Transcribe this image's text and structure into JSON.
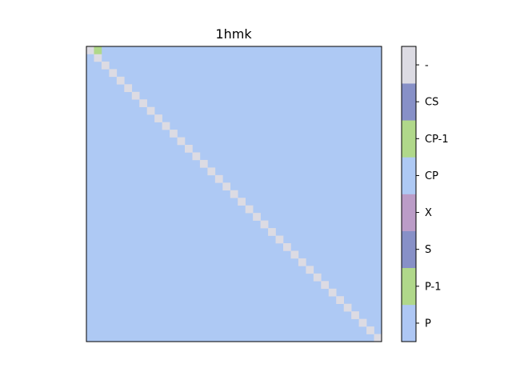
{
  "chart_data": {
    "type": "heatmap",
    "title": "1hmk",
    "xlabel": "",
    "ylabel": "",
    "n": 39,
    "base_category": "CP",
    "diagonal_category": "-",
    "special_cells": [
      {
        "row": 0,
        "col": 1,
        "category": "CP-1"
      }
    ],
    "colorbar": {
      "categories_bottom_to_top": [
        {
          "label": "P",
          "color": "#aec7f4"
        },
        {
          "label": "P-1",
          "color": "#b0d88a"
        },
        {
          "label": "S",
          "color": "#8790c7"
        },
        {
          "label": "X",
          "color": "#bb9cc7"
        },
        {
          "label": "CP",
          "color": "#aec9f4"
        },
        {
          "label": "CP-1",
          "color": "#b0d88a"
        },
        {
          "label": "CS",
          "color": "#8790c7"
        },
        {
          "label": "-",
          "color": "#dcdbe3"
        }
      ]
    },
    "grid": false,
    "axis_ticks": false
  }
}
